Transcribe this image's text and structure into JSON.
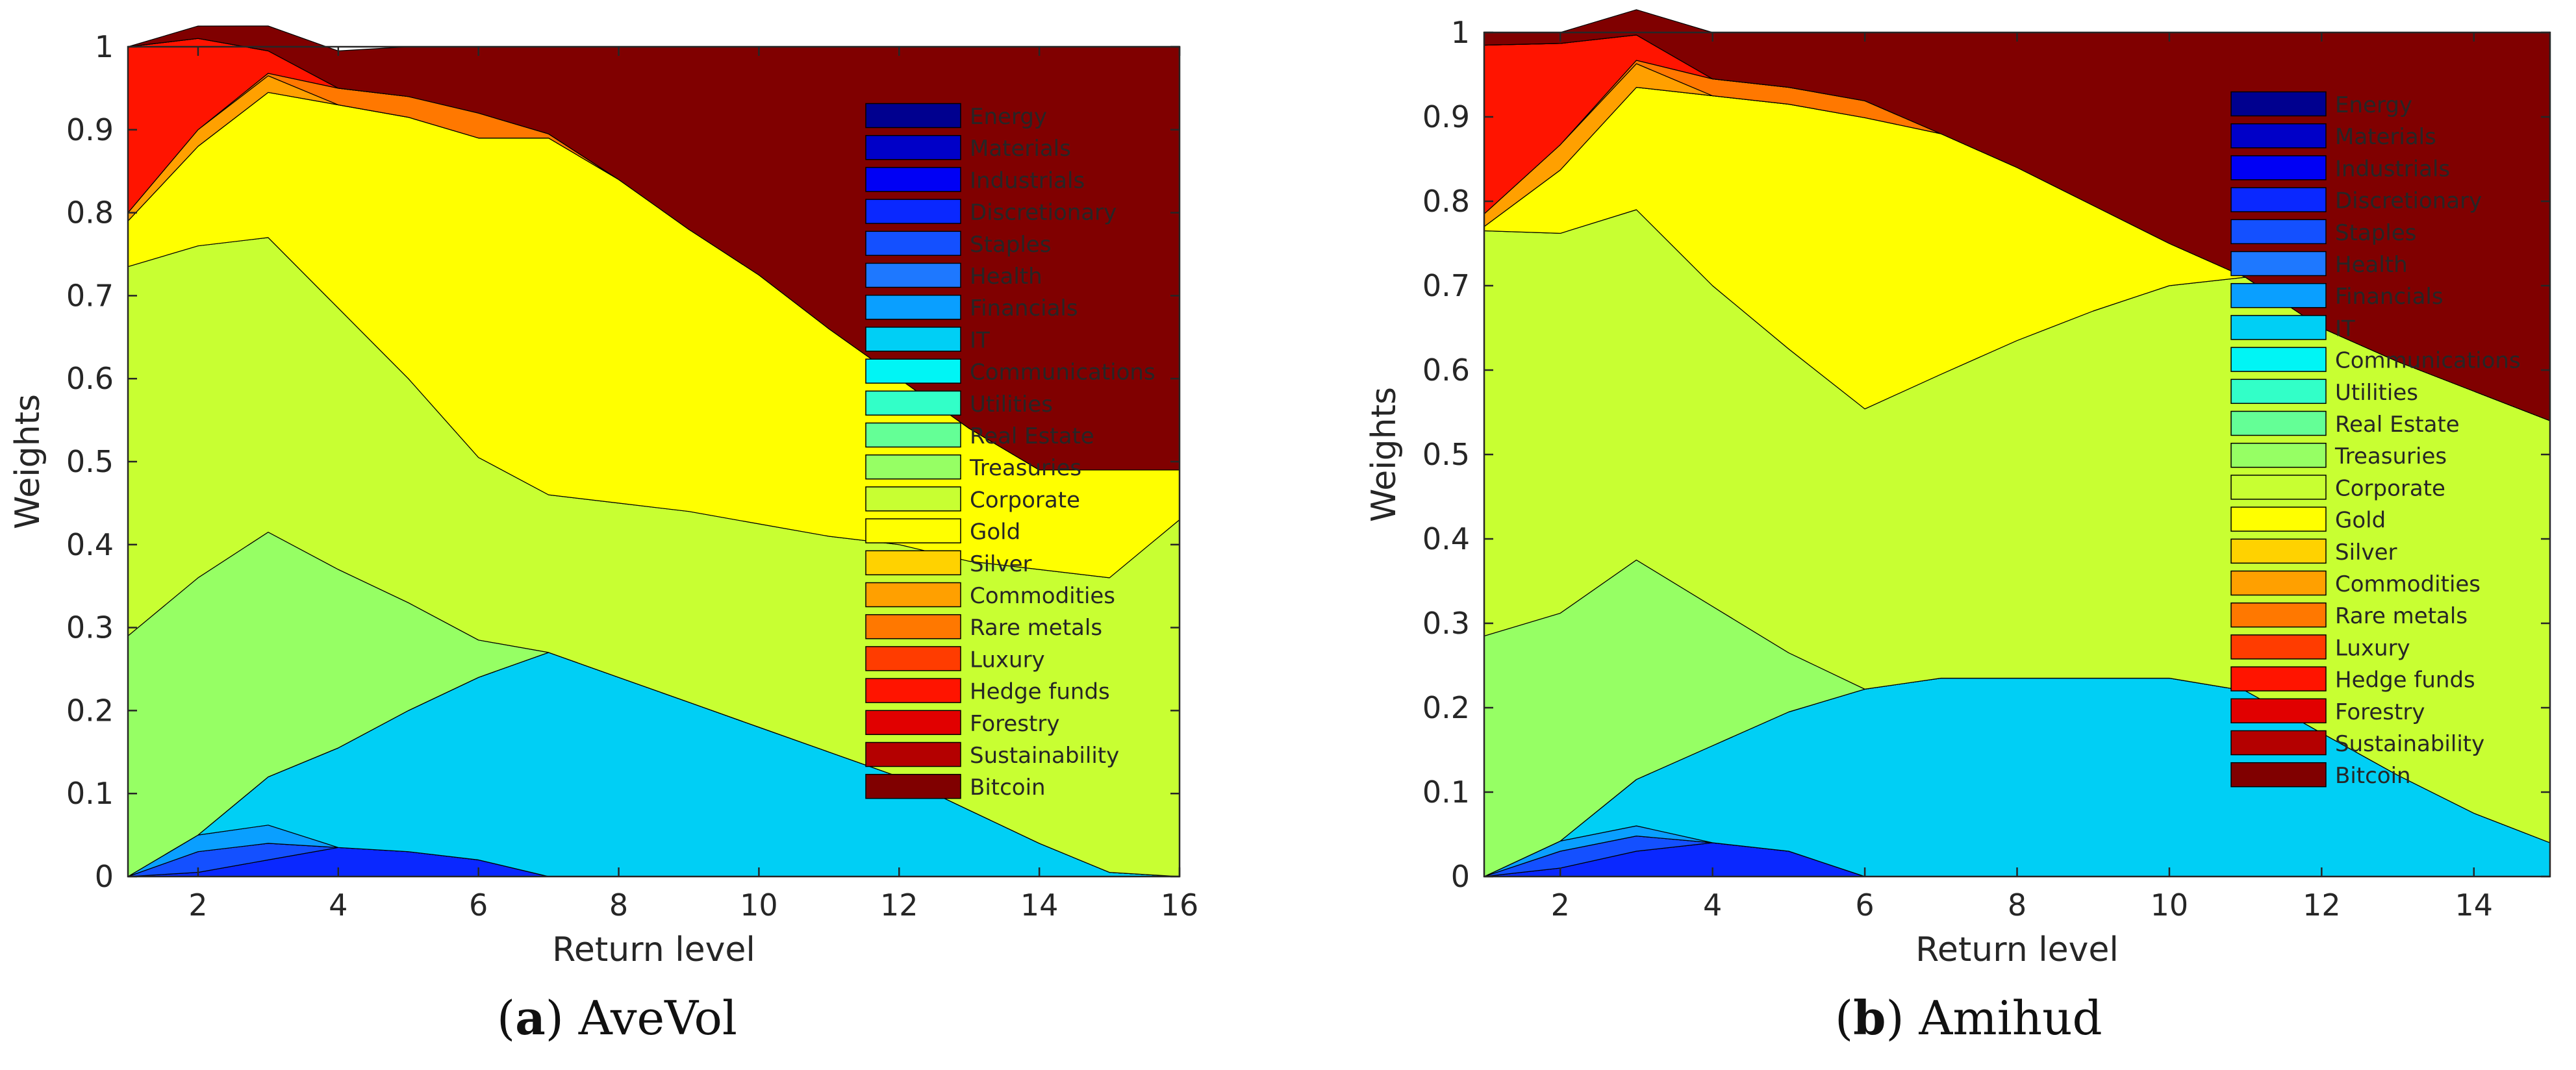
{
  "chart_data": [
    {
      "type": "area",
      "stacked": true,
      "id": "a",
      "title": "",
      "xlabel": "Return level",
      "ylabel": "Weights",
      "xlim": [
        1,
        16
      ],
      "ylim": [
        0,
        1
      ],
      "xticks": [
        "2",
        "4",
        "6",
        "8",
        "10",
        "12",
        "14",
        "16"
      ],
      "xtick_values": [
        2,
        4,
        6,
        8,
        10,
        12,
        14,
        16
      ],
      "yticks": [
        "0",
        "0.1",
        "0.2",
        "0.3",
        "0.4",
        "0.5",
        "0.6",
        "0.7",
        "0.8",
        "0.9",
        "1"
      ],
      "ytick_values": [
        0,
        0.1,
        0.2,
        0.3,
        0.4,
        0.5,
        0.6,
        0.7,
        0.8,
        0.9,
        1
      ],
      "legend_position": "top-right inside",
      "caption": {
        "letter": "a",
        "text": "AveVol"
      },
      "x": [
        1,
        2,
        3,
        4,
        5,
        6,
        7,
        8,
        9,
        10,
        11,
        12,
        13,
        14,
        15,
        16
      ],
      "series": [
        {
          "name": "Energy",
          "values": [
            0,
            0,
            0,
            0,
            0,
            0,
            0,
            0,
            0,
            0,
            0,
            0,
            0,
            0,
            0,
            0
          ]
        },
        {
          "name": "Materials",
          "values": [
            0,
            0,
            0,
            0,
            0,
            0,
            0,
            0,
            0,
            0,
            0,
            0,
            0,
            0,
            0,
            0
          ]
        },
        {
          "name": "Industrials",
          "values": [
            0,
            0,
            0,
            0,
            0,
            0,
            0,
            0,
            0,
            0,
            0,
            0,
            0,
            0,
            0,
            0
          ]
        },
        {
          "name": "Discretionary",
          "values": [
            0,
            0.005,
            0.02,
            0.035,
            0.03,
            0.02,
            0,
            0,
            0,
            0,
            0,
            0,
            0,
            0,
            0,
            0
          ]
        },
        {
          "name": "Staples",
          "values": [
            0,
            0.025,
            0.02,
            0,
            0,
            0,
            0,
            0,
            0,
            0,
            0,
            0,
            0,
            0,
            0,
            0
          ]
        },
        {
          "name": "Health",
          "values": [
            0,
            0,
            0,
            0,
            0,
            0,
            0,
            0,
            0,
            0,
            0,
            0,
            0,
            0,
            0,
            0
          ]
        },
        {
          "name": "Financials",
          "values": [
            0,
            0.02,
            0.022,
            0,
            0,
            0,
            0,
            0,
            0,
            0,
            0,
            0,
            0,
            0,
            0,
            0
          ]
        },
        {
          "name": "IT",
          "values": [
            0,
            0,
            0.058,
            0.12,
            0.17,
            0.22,
            0.27,
            0.24,
            0.21,
            0.18,
            0.15,
            0.12,
            0.08,
            0.04,
            0.005,
            0
          ]
        },
        {
          "name": "Communications",
          "values": [
            0,
            0,
            0,
            0,
            0,
            0,
            0,
            0,
            0,
            0,
            0,
            0,
            0,
            0,
            0,
            0
          ]
        },
        {
          "name": "Utilities",
          "values": [
            0,
            0,
            0,
            0,
            0,
            0,
            0,
            0,
            0,
            0,
            0,
            0,
            0,
            0,
            0,
            0
          ]
        },
        {
          "name": "Real Estate",
          "values": [
            0,
            0,
            0,
            0,
            0,
            0,
            0,
            0,
            0,
            0,
            0,
            0,
            0,
            0,
            0,
            0
          ]
        },
        {
          "name": "Treasuries",
          "values": [
            0.29,
            0.31,
            0.295,
            0.215,
            0.13,
            0.045,
            0,
            0,
            0,
            0,
            0,
            0,
            0,
            0,
            0,
            0
          ]
        },
        {
          "name": "Corporate",
          "values": [
            0.445,
            0.4,
            0.355,
            0.315,
            0.27,
            0.22,
            0.19,
            0.21,
            0.23,
            0.245,
            0.26,
            0.28,
            0.3,
            0.33,
            0.355,
            0.43
          ]
        },
        {
          "name": "Gold",
          "values": [
            0.055,
            0.12,
            0.175,
            0.245,
            0.315,
            0.385,
            0.43,
            0.39,
            0.34,
            0.3,
            0.25,
            0.2,
            0.16,
            0.12,
            0.13,
            0.06
          ]
        },
        {
          "name": "Silver",
          "values": [
            0,
            0,
            0,
            0,
            0,
            0,
            0,
            0,
            0,
            0,
            0,
            0,
            0,
            0,
            0,
            0
          ]
        },
        {
          "name": "Commodities",
          "values": [
            0.01,
            0.02,
            0.02,
            0,
            0,
            0,
            0,
            0,
            0,
            0,
            0,
            0,
            0,
            0,
            0,
            0
          ]
        },
        {
          "name": "Rare metals",
          "values": [
            0,
            0,
            0.003,
            0.02,
            0.025,
            0.03,
            0.005,
            0,
            0,
            0,
            0,
            0,
            0,
            0,
            0,
            0
          ]
        },
        {
          "name": "Luxury",
          "values": [
            0,
            0,
            0,
            0,
            0,
            0,
            0,
            0,
            0,
            0,
            0,
            0,
            0,
            0,
            0,
            0
          ]
        },
        {
          "name": "Hedge funds",
          "values": [
            0.2,
            0.11,
            0.027,
            0,
            0,
            0,
            0,
            0,
            0,
            0,
            0,
            0,
            0,
            0,
            0,
            0
          ]
        },
        {
          "name": "Forestry",
          "values": [
            0,
            0,
            0,
            0,
            0,
            0,
            0,
            0,
            0,
            0,
            0,
            0,
            0,
            0,
            0,
            0
          ]
        },
        {
          "name": "Sustainability",
          "values": [
            0,
            0,
            0,
            0,
            0,
            0,
            0,
            0,
            0,
            0,
            0,
            0,
            0,
            0,
            0,
            0
          ]
        },
        {
          "name": "Bitcoin",
          "values": [
            0,
            0.015,
            0.03,
            0.045,
            0.06,
            0.08,
            0.105,
            0.16,
            0.22,
            0.275,
            0.34,
            0.4,
            0.46,
            0.51,
            0.51,
            0.51
          ]
        }
      ]
    },
    {
      "type": "area",
      "stacked": true,
      "id": "b",
      "title": "",
      "xlabel": "Return level",
      "ylabel": "Weights",
      "xlim": [
        1,
        15
      ],
      "ylim": [
        0,
        1
      ],
      "xticks": [
        "2",
        "4",
        "6",
        "8",
        "10",
        "12",
        "14"
      ],
      "xtick_values": [
        2,
        4,
        6,
        8,
        10,
        12,
        14
      ],
      "yticks": [
        "0",
        "0.1",
        "0.2",
        "0.3",
        "0.4",
        "0.5",
        "0.6",
        "0.7",
        "0.8",
        "0.9",
        "1"
      ],
      "ytick_values": [
        0,
        0.1,
        0.2,
        0.3,
        0.4,
        0.5,
        0.6,
        0.7,
        0.8,
        0.9,
        1
      ],
      "legend_position": "top-right inside",
      "caption": {
        "letter": "b",
        "text": "Amihud"
      },
      "x": [
        1,
        2,
        3,
        4,
        5,
        6,
        7,
        8,
        9,
        10,
        11,
        12,
        13,
        14,
        15
      ],
      "series": [
        {
          "name": "Energy",
          "values": [
            0,
            0,
            0,
            0,
            0,
            0,
            0,
            0,
            0,
            0,
            0,
            0,
            0,
            0,
            0
          ]
        },
        {
          "name": "Materials",
          "values": [
            0,
            0,
            0,
            0,
            0,
            0,
            0,
            0,
            0,
            0,
            0,
            0,
            0,
            0,
            0
          ]
        },
        {
          "name": "Industrials",
          "values": [
            0,
            0,
            0,
            0,
            0,
            0,
            0,
            0,
            0,
            0,
            0,
            0,
            0,
            0,
            0
          ]
        },
        {
          "name": "Discretionary",
          "values": [
            0,
            0.01,
            0.03,
            0.04,
            0.03,
            0,
            0,
            0,
            0,
            0,
            0,
            0,
            0,
            0,
            0
          ]
        },
        {
          "name": "Staples",
          "values": [
            0,
            0.02,
            0.018,
            0,
            0,
            0,
            0,
            0,
            0,
            0,
            0,
            0,
            0,
            0,
            0
          ]
        },
        {
          "name": "Health",
          "values": [
            0,
            0,
            0,
            0,
            0,
            0,
            0,
            0,
            0,
            0,
            0,
            0,
            0,
            0,
            0
          ]
        },
        {
          "name": "Financials",
          "values": [
            0,
            0.012,
            0.012,
            0,
            0,
            0,
            0,
            0,
            0,
            0,
            0,
            0,
            0,
            0,
            0
          ]
        },
        {
          "name": "IT",
          "values": [
            0,
            0,
            0.055,
            0.115,
            0.165,
            0.222,
            0.235,
            0.235,
            0.235,
            0.235,
            0.22,
            0.17,
            0.12,
            0.075,
            0.04
          ]
        },
        {
          "name": "Communications",
          "values": [
            0,
            0,
            0,
            0,
            0,
            0,
            0,
            0,
            0,
            0,
            0,
            0,
            0,
            0,
            0
          ]
        },
        {
          "name": "Utilities",
          "values": [
            0,
            0,
            0,
            0,
            0,
            0,
            0,
            0,
            0,
            0,
            0,
            0,
            0,
            0,
            0
          ]
        },
        {
          "name": "Real Estate",
          "values": [
            0,
            0,
            0,
            0,
            0,
            0,
            0,
            0,
            0,
            0,
            0,
            0,
            0,
            0,
            0
          ]
        },
        {
          "name": "Treasuries",
          "values": [
            0.285,
            0.27,
            0.26,
            0.165,
            0.07,
            0,
            0,
            0,
            0,
            0,
            0,
            0,
            0,
            0,
            0
          ]
        },
        {
          "name": "Corporate",
          "values": [
            0.48,
            0.45,
            0.415,
            0.38,
            0.36,
            0.332,
            0.36,
            0.4,
            0.435,
            0.465,
            0.49,
            0.48,
            0.49,
            0.5,
            0.5
          ]
        },
        {
          "name": "Gold",
          "values": [
            0.005,
            0.075,
            0.145,
            0.225,
            0.29,
            0.345,
            0.285,
            0.205,
            0.125,
            0.05,
            0,
            0,
            0,
            0,
            0
          ]
        },
        {
          "name": "Silver",
          "values": [
            0,
            0,
            0,
            0,
            0,
            0,
            0,
            0,
            0,
            0,
            0,
            0,
            0,
            0,
            0
          ]
        },
        {
          "name": "Commodities",
          "values": [
            0.015,
            0.03,
            0.028,
            0,
            0,
            0,
            0,
            0,
            0,
            0,
            0,
            0,
            0,
            0,
            0
          ]
        },
        {
          "name": "Rare metals",
          "values": [
            0,
            0,
            0.004,
            0.02,
            0.02,
            0.02,
            0,
            0,
            0,
            0,
            0,
            0,
            0,
            0,
            0
          ]
        },
        {
          "name": "Luxury",
          "values": [
            0,
            0,
            0,
            0,
            0,
            0,
            0,
            0,
            0,
            0,
            0,
            0,
            0,
            0,
            0
          ]
        },
        {
          "name": "Hedge funds",
          "values": [
            0.2,
            0.12,
            0.03,
            0,
            0,
            0,
            0,
            0,
            0,
            0,
            0,
            0,
            0,
            0,
            0
          ]
        },
        {
          "name": "Forestry",
          "values": [
            0,
            0,
            0,
            0,
            0,
            0,
            0,
            0,
            0,
            0,
            0,
            0,
            0,
            0,
            0
          ]
        },
        {
          "name": "Sustainability",
          "values": [
            0,
            0,
            0,
            0,
            0,
            0,
            0,
            0,
            0,
            0,
            0,
            0,
            0,
            0,
            0
          ]
        },
        {
          "name": "Bitcoin",
          "values": [
            0.015,
            0.013,
            0.03,
            0.055,
            0.065,
            0.081,
            0.12,
            0.16,
            0.205,
            0.25,
            0.29,
            0.35,
            0.39,
            0.425,
            0.46
          ]
        }
      ]
    }
  ],
  "colors": [
    "#00008f",
    "#0000c8",
    "#0000f5",
    "#0a28ff",
    "#1450ff",
    "#1e78ff",
    "#0a9fff",
    "#00cff5",
    "#00f5f5",
    "#32ffc8",
    "#64ff96",
    "#96ff64",
    "#c8ff32",
    "#ffff00",
    "#ffd200",
    "#ffa000",
    "#ff7800",
    "#ff3c00",
    "#ff1400",
    "#e10000",
    "#b40000",
    "#800000"
  ]
}
